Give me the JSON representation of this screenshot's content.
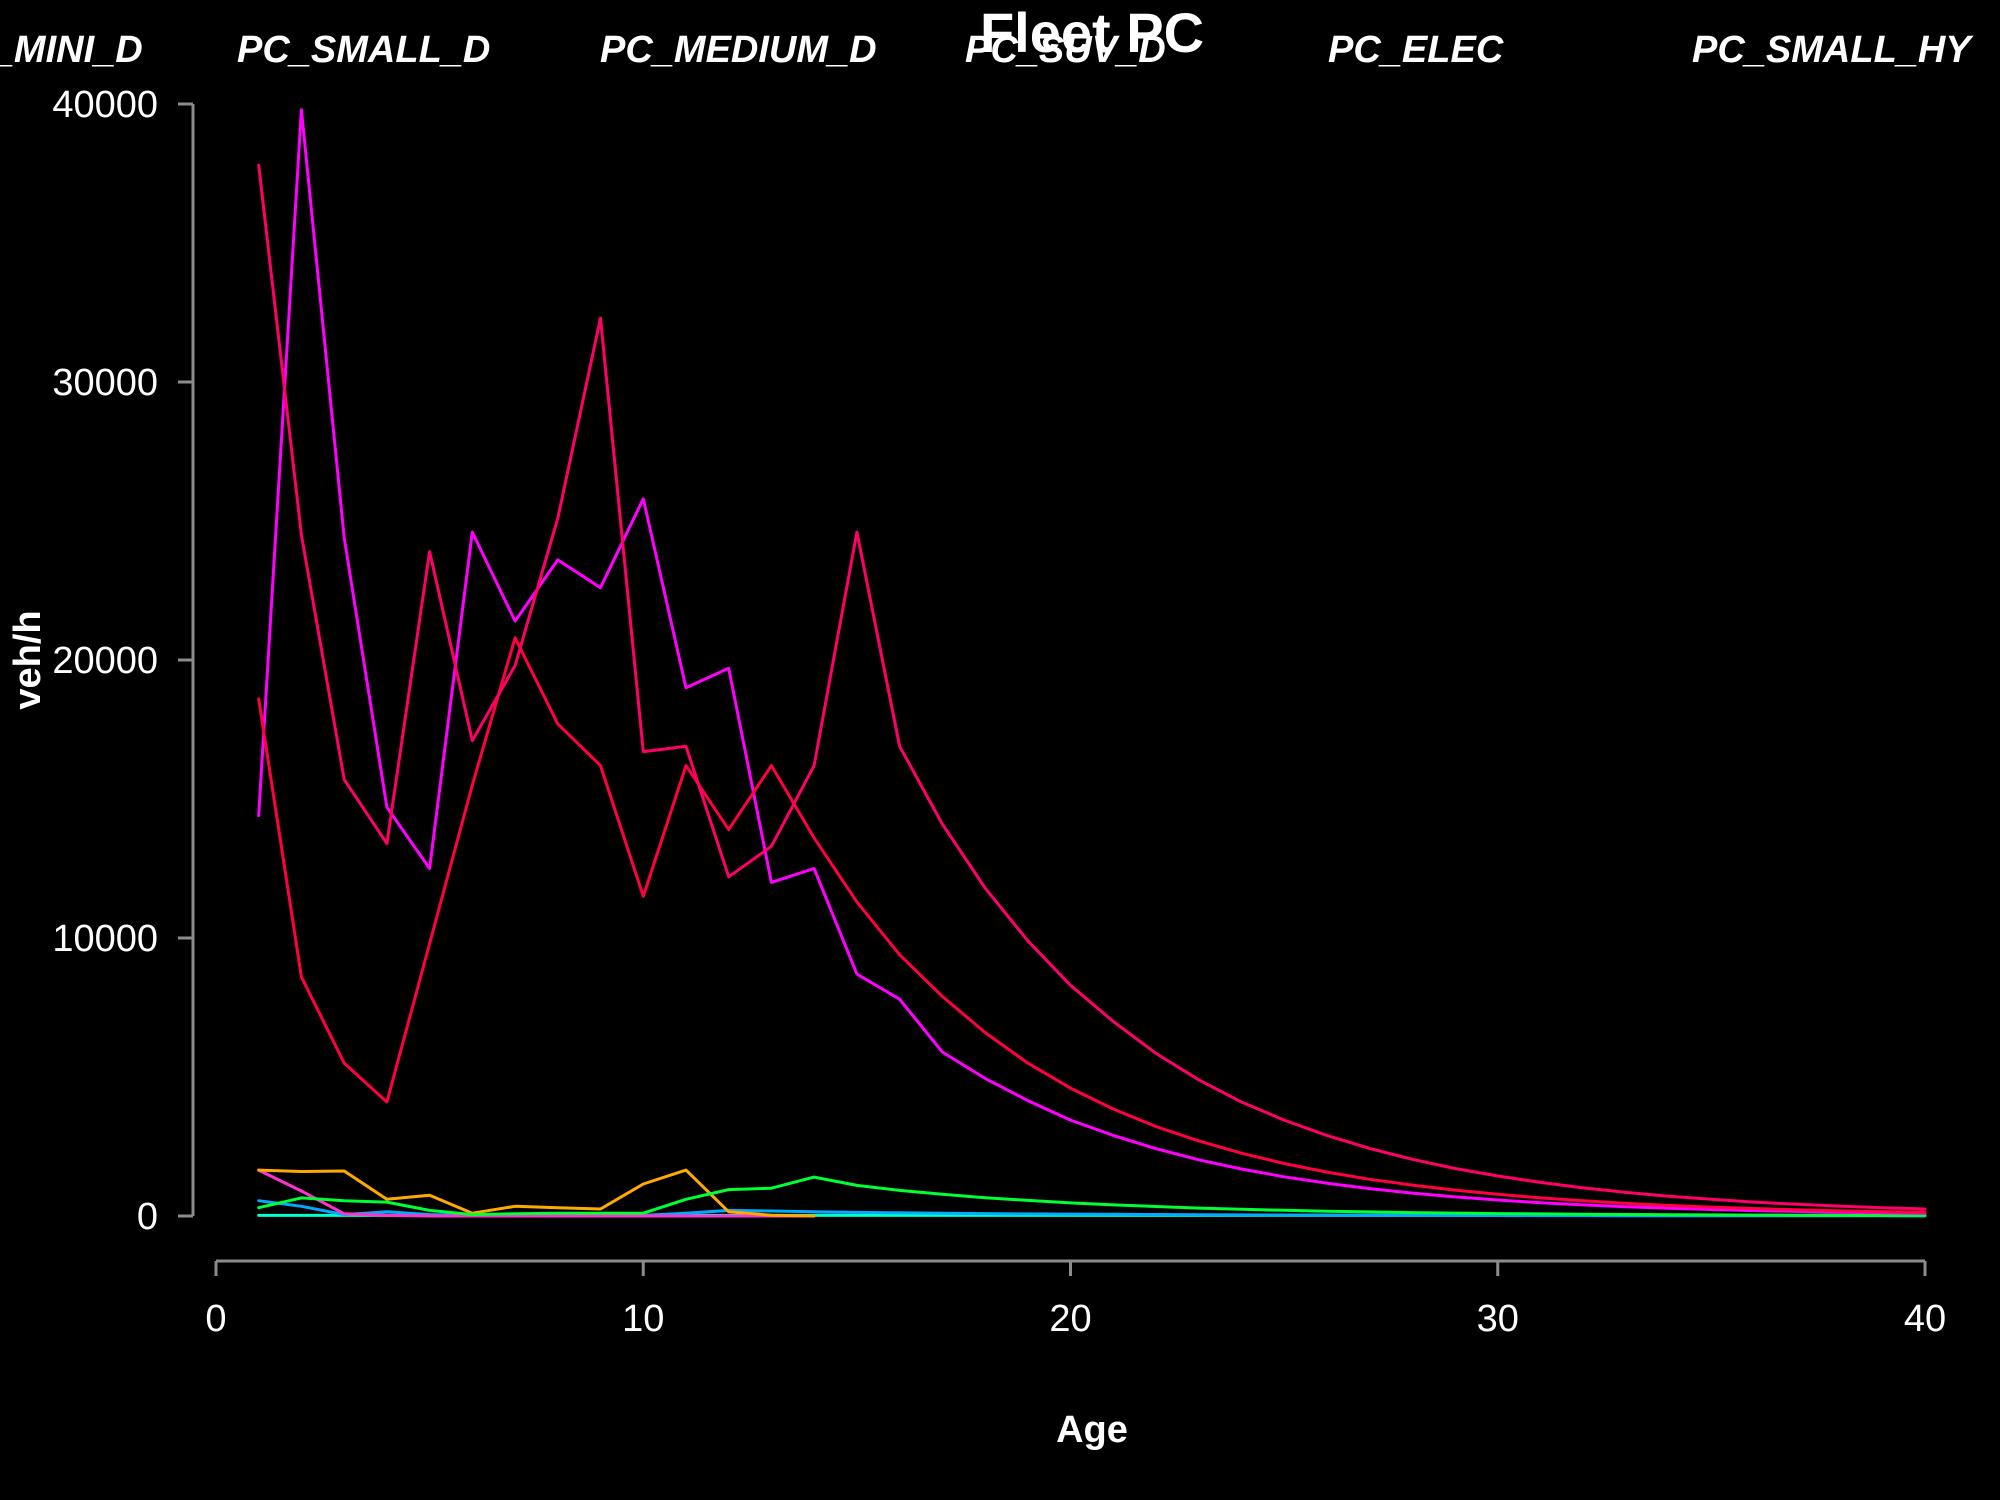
{
  "chart_data": {
    "type": "line",
    "title": "Fleet PC",
    "xlabel": "Age",
    "ylabel": "veh/h",
    "xlim": [
      0,
      40
    ],
    "ylim": [
      0,
      40000
    ],
    "x_ticks": [
      0,
      10,
      20,
      30,
      40
    ],
    "y_ticks": [
      0,
      10000,
      20000,
      30000,
      40000
    ],
    "top_labels": [
      "PC_MINI_D",
      "PC_SMALL_D",
      "PC_MEDIUM_D",
      "PC_SUV_D",
      "PC_ELEC",
      "PC_SMALL_HY"
    ],
    "colors": {
      "background": "#000000",
      "text": "#ffffff",
      "axis": "#8c8c8c"
    },
    "series": [
      {
        "color": "#ff0066",
        "x": [
          1,
          2,
          3,
          4,
          5,
          6,
          7,
          8,
          9,
          10,
          11,
          12,
          13,
          14,
          15,
          16,
          17,
          18,
          19,
          20,
          21,
          22,
          23,
          24,
          25,
          26,
          27,
          28,
          29,
          30,
          31,
          32,
          33,
          34,
          35,
          36,
          37,
          38,
          39,
          40
        ],
        "y": [
          37800,
          24500,
          15700,
          13400,
          23900,
          17100,
          19800,
          25100,
          32300,
          16700,
          16900,
          12200,
          13300,
          16200,
          24600,
          16900,
          14100,
          11800,
          9900,
          8300,
          7000,
          5850,
          4900,
          4100,
          3450,
          2900,
          2430,
          2040,
          1710,
          1440,
          1210,
          1010,
          850,
          710,
          600,
          500,
          420,
          355,
          300,
          250
        ]
      },
      {
        "color": "#ff0040",
        "x": [
          1,
          2,
          3,
          4,
          5,
          6,
          7,
          8,
          9,
          10,
          11,
          12,
          13,
          14,
          15,
          16,
          17,
          18,
          19,
          20,
          21,
          22,
          23,
          24,
          25,
          26,
          27,
          28,
          29,
          30,
          31,
          32,
          33,
          34,
          35,
          36,
          37,
          38,
          39,
          40
        ],
        "y": [
          18600,
          8600,
          5500,
          4100,
          9800,
          15500,
          20800,
          17700,
          16200,
          11500,
          16200,
          13900,
          16200,
          13600,
          11300,
          9400,
          7900,
          6600,
          5500,
          4600,
          3850,
          3220,
          2700,
          2260,
          1890,
          1580,
          1320,
          1110,
          930,
          780,
          650,
          545,
          455,
          380,
          320,
          268,
          224,
          188,
          157,
          132
        ]
      },
      {
        "color": "#ff00ff",
        "x": [
          1,
          2,
          3,
          4,
          5,
          6,
          7,
          8,
          9,
          10,
          11,
          12,
          13,
          14,
          15,
          16,
          17,
          18,
          19,
          20,
          21,
          22,
          23,
          24,
          25,
          26,
          27,
          28,
          29,
          30,
          31,
          32,
          33,
          34,
          35,
          36,
          37,
          38,
          39,
          40
        ],
        "y": [
          14400,
          39800,
          24400,
          14700,
          12500,
          24600,
          21400,
          23600,
          22600,
          25800,
          19000,
          19700,
          12000,
          12500,
          8700,
          7800,
          5900,
          4950,
          4150,
          3450,
          2900,
          2420,
          2020,
          1690,
          1410,
          1180,
          985,
          823,
          688,
          575,
          480,
          401,
          335,
          280,
          234,
          196,
          164,
          137,
          114,
          96
        ]
      },
      {
        "color": "#00ff33",
        "x": [
          1,
          2,
          3,
          4,
          5,
          6,
          7,
          8,
          9,
          10,
          11,
          12,
          13,
          14,
          15,
          16,
          17,
          18,
          19,
          20,
          21,
          22,
          23,
          24,
          25,
          26,
          27,
          28,
          29,
          30,
          31,
          32,
          33,
          34,
          35,
          36,
          37,
          38,
          39,
          40
        ],
        "y": [
          300,
          650,
          550,
          500,
          200,
          50,
          80,
          100,
          100,
          100,
          600,
          950,
          1000,
          1400,
          1100,
          920,
          780,
          660,
          560,
          470,
          400,
          340,
          285,
          240,
          205,
          172,
          146,
          123,
          104,
          88,
          74,
          63,
          53,
          45,
          38,
          32,
          27,
          23,
          19,
          16
        ]
      },
      {
        "color": "#ffaa00",
        "x": [
          1,
          2,
          3,
          4,
          5,
          6,
          7,
          8,
          9,
          10,
          11,
          12,
          13,
          14
        ],
        "y": [
          1650,
          1600,
          1620,
          600,
          750,
          100,
          350,
          300,
          250,
          1150,
          1650,
          150,
          30,
          0
        ]
      },
      {
        "color": "#ff33cc",
        "x": [
          1,
          2,
          3,
          4,
          5,
          6,
          7,
          8,
          9,
          10,
          11,
          12,
          13,
          14
        ],
        "y": [
          1650,
          900,
          80,
          20,
          0,
          0,
          0,
          0,
          0,
          0,
          0,
          0,
          0,
          0
        ]
      },
      {
        "color": "#00aaff",
        "x": [
          1,
          2,
          3,
          4,
          5,
          6,
          7,
          8,
          9,
          10,
          11,
          12,
          13,
          14,
          15,
          16,
          17,
          18,
          19,
          20,
          21,
          22,
          23,
          24,
          25,
          26,
          27,
          28,
          29,
          30,
          31,
          32,
          33,
          34,
          35,
          36,
          37,
          38,
          39,
          40
        ],
        "y": [
          550,
          350,
          50,
          150,
          50,
          30,
          20,
          20,
          20,
          20,
          100,
          200,
          180,
          150,
          130,
          115,
          100,
          88,
          77,
          68,
          60,
          53,
          46,
          40,
          35,
          31,
          27,
          24,
          21,
          18,
          16,
          14,
          12,
          11,
          10,
          9,
          8,
          7,
          6,
          5
        ]
      },
      {
        "color": "#00ffcc",
        "x": [
          1,
          2,
          3,
          4,
          5,
          6,
          7,
          8,
          9,
          10,
          11,
          12,
          13,
          14,
          15,
          16,
          17,
          18,
          19,
          20,
          21,
          22,
          23,
          24,
          25,
          26,
          27,
          28,
          29,
          30,
          31,
          32,
          33,
          34,
          35,
          36,
          37,
          38,
          39,
          40
        ],
        "y": [
          20,
          20,
          20,
          20,
          20,
          20,
          20,
          20,
          20,
          20,
          20,
          20,
          20,
          20,
          20,
          20,
          20,
          20,
          20,
          20,
          20,
          20,
          20,
          20,
          20,
          20,
          20,
          20,
          20,
          20,
          20,
          20,
          20,
          20,
          20,
          20,
          20,
          20,
          20,
          20
        ]
      }
    ]
  }
}
